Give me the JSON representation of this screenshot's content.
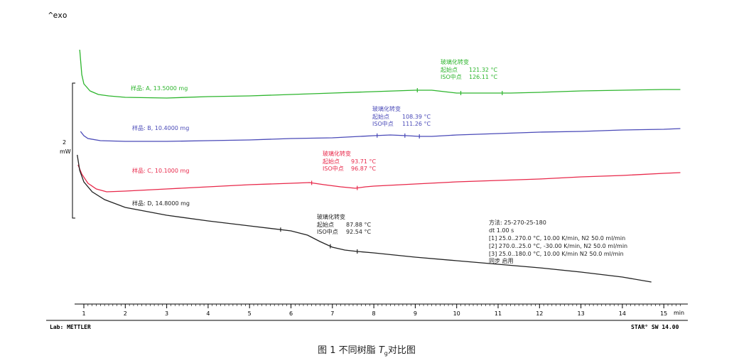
{
  "header": {
    "exo_label": "^exo"
  },
  "scale_bar": {
    "value": "2",
    "unit": "mW"
  },
  "footer": {
    "lab": "Lab: METTLER",
    "software": "STAR° SW 14.00"
  },
  "caption": {
    "prefix": "图 1 不同树脂 ",
    "symbol": "T",
    "subscript": "g",
    "suffix": "对比图"
  },
  "method": {
    "title": "方法: 25-270-25-180",
    "dt": "dt 1.00 s",
    "steps": [
      "[1] 25.0..270.0 °C, 10.00 K/min, N2 50.0 ml/min",
      "[2] 270.0..25.0 °C, -30.00 K/min, N2 50.0 ml/min",
      "[3] 25.0..180.0 °C, 10.00 K/min  N2 50.0 ml/min"
    ],
    "note": "同步 启用"
  },
  "colors": {
    "A": "#2db52d",
    "B": "#4a4ab8",
    "C": "#e8284a",
    "D": "#222222",
    "axis": "#000000"
  },
  "chart_data": {
    "type": "line",
    "xlabel": "min",
    "x_ticks": [
      "1",
      "2",
      "3",
      "4",
      "5",
      "6",
      "7",
      "8",
      "9",
      "10",
      "11",
      "12",
      "13",
      "14",
      "15"
    ],
    "xlim": [
      0.75,
      15.4
    ],
    "series": [
      {
        "name": "样品: A, 13.5000 mg",
        "color_key": "A",
        "points": [
          [
            0.9,
            70
          ],
          [
            0.95,
            105
          ],
          [
            1.0,
            118
          ],
          [
            1.15,
            128
          ],
          [
            1.35,
            133
          ],
          [
            1.6,
            135
          ],
          [
            2,
            137
          ],
          [
            3,
            138
          ],
          [
            4,
            136
          ],
          [
            5,
            135
          ],
          [
            6,
            133
          ],
          [
            7,
            131
          ],
          [
            8,
            129
          ],
          [
            9,
            127
          ],
          [
            9.4,
            127
          ],
          [
            9.7,
            129
          ],
          [
            10.0,
            131
          ],
          [
            10.3,
            131
          ],
          [
            10.6,
            131
          ],
          [
            11.0,
            131
          ],
          [
            11.3,
            131
          ],
          [
            12,
            130
          ],
          [
            13,
            128
          ],
          [
            14,
            127
          ],
          [
            15,
            126
          ],
          [
            15.4,
            126
          ]
        ],
        "tg": {
          "title": "玻璃化转变",
          "onset_label": "起始点",
          "onset": "121.32 °C",
          "mid_label": "ISO中点",
          "mid": "126.11 °C"
        },
        "markers": [
          9.05,
          10.1,
          11.1
        ]
      },
      {
        "name": "样品: B, 10.4000 mg",
        "color_key": "B",
        "points": [
          [
            0.92,
            185
          ],
          [
            1.0,
            191
          ],
          [
            1.1,
            195
          ],
          [
            1.4,
            198
          ],
          [
            2,
            199
          ],
          [
            3,
            199
          ],
          [
            4,
            198
          ],
          [
            5,
            197
          ],
          [
            6,
            195
          ],
          [
            7,
            194
          ],
          [
            8,
            191
          ],
          [
            8.4,
            190
          ],
          [
            8.8,
            191
          ],
          [
            9.1,
            192
          ],
          [
            9.4,
            192
          ],
          [
            10,
            190
          ],
          [
            11,
            188
          ],
          [
            12,
            186
          ],
          [
            13,
            185
          ],
          [
            14,
            183
          ],
          [
            15,
            182
          ],
          [
            15.4,
            181
          ]
        ],
        "tg": {
          "title": "玻璃化转变",
          "onset_label": "起始点",
          "onset": "108.39 °C",
          "mid_label": "ISO中点",
          "mid": "111.26 °C"
        },
        "markers": [
          8.08,
          8.75,
          9.1
        ]
      },
      {
        "name": "样品: C, 10.1000 mg",
        "color_key": "C",
        "points": [
          [
            0.86,
            232
          ],
          [
            0.95,
            245
          ],
          [
            1.1,
            258
          ],
          [
            1.3,
            266
          ],
          [
            1.55,
            270
          ],
          [
            2,
            269
          ],
          [
            3,
            266
          ],
          [
            4,
            263
          ],
          [
            5,
            260
          ],
          [
            6,
            258
          ],
          [
            6.45,
            257
          ],
          [
            6.8,
            260
          ],
          [
            7.2,
            263
          ],
          [
            7.55,
            265
          ],
          [
            7.8,
            263
          ],
          [
            8,
            262
          ],
          [
            9,
            259
          ],
          [
            10,
            256
          ],
          [
            11,
            254
          ],
          [
            12,
            252
          ],
          [
            13,
            249
          ],
          [
            14,
            247
          ],
          [
            15,
            244
          ],
          [
            15.4,
            243
          ]
        ],
        "tg": {
          "title": "玻璃化转变",
          "onset_label": "起始点",
          "onset": "93.71 °C",
          "mid_label": "ISO中点",
          "mid": "96.87 °C"
        },
        "markers": [
          6.5,
          7.6
        ]
      },
      {
        "name": "样品: D, 14.8000 mg",
        "color_key": "D",
        "points": [
          [
            0.84,
            218
          ],
          [
            0.9,
            240
          ],
          [
            1.0,
            256
          ],
          [
            1.2,
            270
          ],
          [
            1.5,
            281
          ],
          [
            2,
            292
          ],
          [
            3,
            303
          ],
          [
            4,
            311
          ],
          [
            5,
            318
          ],
          [
            6,
            325
          ],
          [
            6.4,
            331
          ],
          [
            6.7,
            340
          ],
          [
            7.0,
            348
          ],
          [
            7.3,
            352
          ],
          [
            7.6,
            354
          ],
          [
            8,
            356
          ],
          [
            9,
            362
          ],
          [
            10,
            367
          ],
          [
            11,
            372
          ],
          [
            12,
            377
          ],
          [
            13,
            383
          ],
          [
            14,
            390
          ],
          [
            14.7,
            397
          ]
        ],
        "tg": {
          "title": "玻璃化转变",
          "onset_label": "起始点",
          "onset": "87.88 °C",
          "mid_label": "ISO中点",
          "mid": "92.54 °C"
        },
        "markers": [
          5.75,
          6.95,
          7.6
        ]
      }
    ]
  }
}
